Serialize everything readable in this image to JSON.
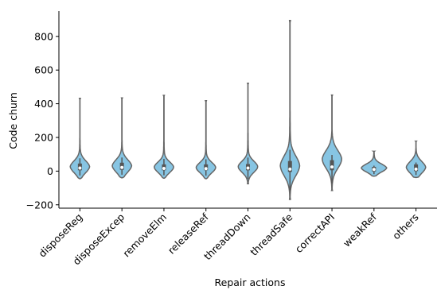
{
  "chart_data": {
    "type": "violin",
    "title": "",
    "xlabel": "Repair actions",
    "ylabel": "Code churn",
    "ylim": [
      -220,
      950
    ],
    "yticks": [
      -200,
      0,
      200,
      400,
      600,
      800
    ],
    "ytick_labels": [
      "−200",
      "0",
      "200",
      "400",
      "600",
      "800"
    ],
    "grid": false,
    "legend": "none",
    "fill_color": "#87c5e3",
    "edge_color": "#666666",
    "box_color": "#555555",
    "median_color": "#ffffff",
    "categories": [
      "disposeReg",
      "disposeExcep",
      "removeElm",
      "releaseRef",
      "threadDown",
      "threadSafe",
      "correctAPI",
      "weakRef",
      "others"
    ],
    "violins": [
      {
        "category": "disposeReg",
        "min": -45,
        "q1": 5,
        "median": 18,
        "q3": 45,
        "max": 432,
        "mode": 25
      },
      {
        "category": "disposeExcep",
        "min": -40,
        "q1": 8,
        "median": 22,
        "q3": 50,
        "max": 435,
        "mode": 30
      },
      {
        "category": "removeElm",
        "min": -42,
        "q1": 5,
        "median": 16,
        "q3": 40,
        "max": 450,
        "mode": 22
      },
      {
        "category": "releaseRef",
        "min": -45,
        "q1": 5,
        "median": 15,
        "q3": 40,
        "max": 418,
        "mode": 20
      },
      {
        "category": "threadDown",
        "min": -75,
        "q1": 5,
        "median": 18,
        "q3": 42,
        "max": 522,
        "mode": 25
      },
      {
        "category": "threadSafe",
        "min": -168,
        "q1": -5,
        "median": 12,
        "q3": 60,
        "max": 895,
        "mode": 30
      },
      {
        "category": "correctAPI",
        "min": -115,
        "q1": 5,
        "median": 25,
        "q3": 65,
        "max": 452,
        "mode": 70
      },
      {
        "category": "weakRef",
        "min": -30,
        "q1": -2,
        "median": 10,
        "q3": 25,
        "max": 118,
        "mode": 18
      },
      {
        "category": "others",
        "min": -38,
        "q1": 0,
        "median": 12,
        "q3": 40,
        "max": 178,
        "mode": 22
      }
    ]
  }
}
